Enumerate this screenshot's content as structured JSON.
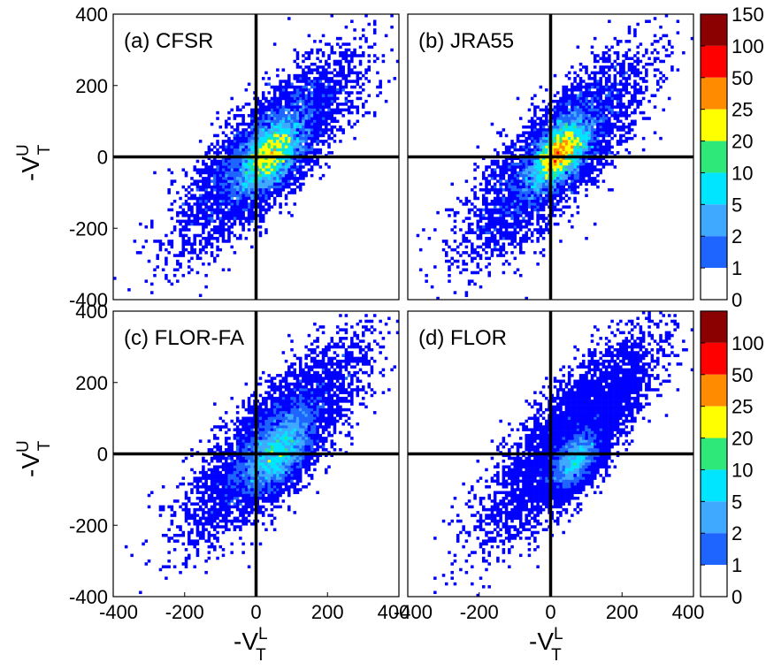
{
  "chart_data": [
    {
      "type": "heatmap",
      "label": "(a) CFSR",
      "xlabel": {
        "base": "-V",
        "sup": "L",
        "sub": "T"
      },
      "ylabel": {
        "base": "-V",
        "sup": "U",
        "sub": "T"
      },
      "xlim": [
        -400,
        400
      ],
      "ylim": [
        -400,
        400
      ],
      "xticks": [
        "-400",
        "-200",
        "0",
        "200",
        "400"
      ],
      "yticks": [
        "400",
        "200",
        "0",
        "-200",
        "-400"
      ],
      "reference_lines": {
        "x": 0,
        "y": 0
      },
      "slope": 0.95,
      "spread": 52,
      "center": [
        40,
        5
      ],
      "peak_count": 60
    },
    {
      "type": "heatmap",
      "label": "(b) JRA55",
      "xlabel": {
        "base": "-V",
        "sup": "L",
        "sub": "T"
      },
      "ylabel": {
        "base": "-V",
        "sup": "U",
        "sub": "T"
      },
      "xlim": [
        -400,
        400
      ],
      "ylim": [
        -400,
        400
      ],
      "xticks": [
        "-400",
        "-200",
        "0",
        "200",
        "400"
      ],
      "yticks": [
        "400",
        "200",
        "0",
        "-200",
        "-400"
      ],
      "reference_lines": {
        "x": 0,
        "y": 0
      },
      "slope": 1.0,
      "spread": 44,
      "center": [
        25,
        10
      ],
      "peak_count": 100
    },
    {
      "type": "heatmap",
      "label": "(c) FLOR-FA",
      "xlabel": {
        "base": "-V",
        "sup": "L",
        "sub": "T"
      },
      "ylabel": {
        "base": "-V",
        "sup": "U",
        "sub": "T"
      },
      "xlim": [
        -400,
        400
      ],
      "ylim": [
        -400,
        400
      ],
      "xticks": [
        "-400",
        "-200",
        "0",
        "200",
        "400"
      ],
      "yticks": [
        "400",
        "200",
        "0",
        "-200",
        "-400"
      ],
      "reference_lines": {
        "x": 0,
        "y": 0
      },
      "slope": 0.95,
      "spread": 55,
      "center": [
        60,
        0
      ],
      "peak_count": 25
    },
    {
      "type": "heatmap",
      "label": "(d) FLOR",
      "xlabel": {
        "base": "-V",
        "sup": "L",
        "sub": "T"
      },
      "ylabel": {
        "base": "-V",
        "sup": "U",
        "sub": "T"
      },
      "xlim": [
        -400,
        400
      ],
      "ylim": [
        -400,
        400
      ],
      "xticks": [
        "-400",
        "-200",
        "0",
        "200",
        "400"
      ],
      "yticks": [
        "400",
        "200",
        "0",
        "-200",
        "-400"
      ],
      "reference_lines": {
        "x": 0,
        "y": 0
      },
      "slope": 1.05,
      "spread": 42,
      "center": [
        70,
        -20
      ],
      "peak_count": 20
    }
  ],
  "colorbars": [
    {
      "labels": [
        "150",
        "100",
        "50",
        "25",
        "20",
        "10",
        "5",
        "2",
        "1",
        "0"
      ]
    },
    {
      "labels": [
        "100",
        "50",
        "25",
        "20",
        "10",
        "5",
        "2",
        "1",
        "0"
      ]
    }
  ],
  "color_levels": [
    {
      "min": 0,
      "color": "#ffffff"
    },
    {
      "min": 1,
      "color": "#0000ff"
    },
    {
      "min": 2,
      "color": "#1e64ff"
    },
    {
      "min": 5,
      "color": "#3fa9ff"
    },
    {
      "min": 10,
      "color": "#00e5ff"
    },
    {
      "min": 20,
      "color": "#2ee87a"
    },
    {
      "min": 25,
      "color": "#ffff00"
    },
    {
      "min": 50,
      "color": "#ff8c00"
    },
    {
      "min": 100,
      "color": "#ff0000"
    },
    {
      "min": 150,
      "color": "#8b0000"
    }
  ]
}
